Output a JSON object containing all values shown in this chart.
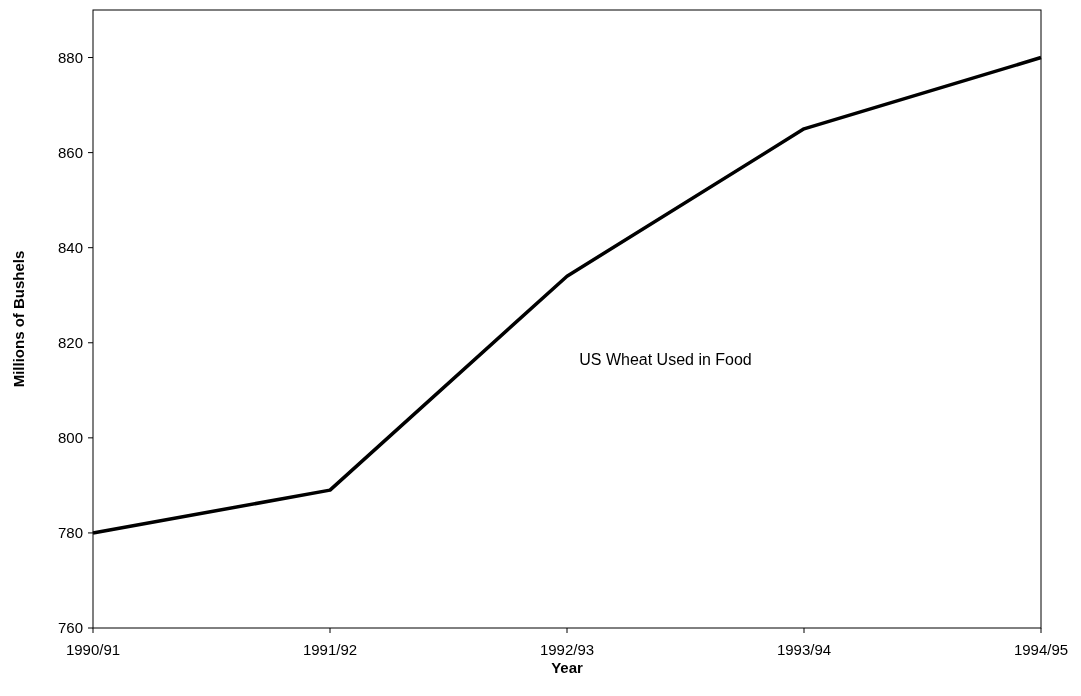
{
  "chart_data": {
    "type": "line",
    "xlabel": "Year",
    "ylabel": "Millions of Bushels",
    "categories": [
      "1990/91",
      "1991/92",
      "1992/93",
      "1993/94",
      "1994/95"
    ],
    "series": [
      {
        "name": "US Wheat Used in Food",
        "color": "#000000",
        "values": [
          780,
          789,
          834,
          865,
          880
        ]
      }
    ],
    "ylim": [
      760,
      890
    ],
    "yticks": [
      760,
      780,
      800,
      820,
      840,
      860,
      880
    ],
    "grid": false,
    "marker": "none",
    "line_style": "solid"
  }
}
